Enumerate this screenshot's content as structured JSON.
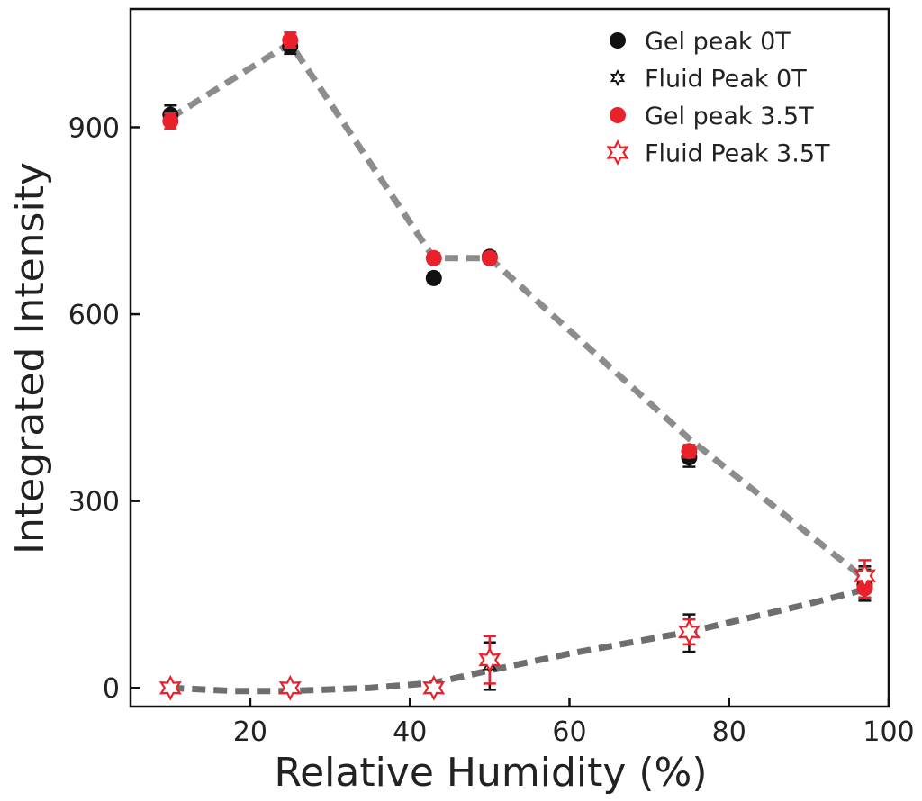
{
  "chart_data": {
    "type": "scatter",
    "xlabel": "Relative Humidity (%)",
    "ylabel": "Integrated Intensity",
    "xlim": [
      5,
      100
    ],
    "ylim": [
      -30,
      1090
    ],
    "xticks": [
      20,
      40,
      60,
      80,
      100
    ],
    "yticks": [
      0,
      300,
      600,
      900
    ],
    "grid": false,
    "legend_position": "top-right",
    "series": [
      {
        "name": "Gel peak 0T",
        "marker": "circle",
        "color": "#111111",
        "points": [
          {
            "x": 10,
            "y": 920,
            "err": 15
          },
          {
            "x": 25,
            "y": 1030,
            "err": 12
          },
          {
            "x": 43,
            "y": 658,
            "err": 8
          },
          {
            "x": 50,
            "y": 692,
            "err": 8
          },
          {
            "x": 75,
            "y": 370,
            "err": 15
          },
          {
            "x": 97,
            "y": 165,
            "err": 25
          }
        ]
      },
      {
        "name": "Fluid Peak 0T",
        "marker": "star-open",
        "color": "#111111",
        "points": [
          {
            "x": 10,
            "y": 0,
            "err": 5
          },
          {
            "x": 25,
            "y": 0,
            "err": 5
          },
          {
            "x": 43,
            "y": 0,
            "err": 5
          },
          {
            "x": 50,
            "y": 35,
            "err": 38
          },
          {
            "x": 75,
            "y": 88,
            "err": 30
          },
          {
            "x": 97,
            "y": 170,
            "err": 25
          }
        ]
      },
      {
        "name": "Gel peak 3.5T",
        "marker": "circle",
        "color": "#e8212a",
        "points": [
          {
            "x": 10,
            "y": 910,
            "err": 12
          },
          {
            "x": 25,
            "y": 1040,
            "err": 12
          },
          {
            "x": 43,
            "y": 690,
            "err": 8
          },
          {
            "x": 50,
            "y": 690,
            "err": 8
          },
          {
            "x": 75,
            "y": 380,
            "err": 10
          },
          {
            "x": 97,
            "y": 160,
            "err": 15
          }
        ]
      },
      {
        "name": "Fluid Peak 3.5T",
        "marker": "star-open",
        "color": "#e8212a",
        "points": [
          {
            "x": 10,
            "y": 0,
            "err": 5
          },
          {
            "x": 25,
            "y": 0,
            "err": 5
          },
          {
            "x": 43,
            "y": 0,
            "err": 5
          },
          {
            "x": 50,
            "y": 45,
            "err": 38
          },
          {
            "x": 75,
            "y": 90,
            "err": 20
          },
          {
            "x": 97,
            "y": 180,
            "err": 25
          }
        ]
      }
    ],
    "trend_lines": [
      {
        "style": "dashed",
        "color": "#8c8c8c",
        "points": [
          [
            10,
            915
          ],
          [
            25,
            1035
          ],
          [
            43,
            690
          ],
          [
            50,
            690
          ],
          [
            75,
            400
          ],
          [
            97,
            175
          ]
        ]
      },
      {
        "style": "dashed",
        "color": "#6e6e6e",
        "points": [
          [
            10,
            0
          ],
          [
            18,
            -5
          ],
          [
            25,
            -5
          ],
          [
            35,
            0
          ],
          [
            43,
            8
          ],
          [
            50,
            28
          ],
          [
            60,
            55
          ],
          [
            75,
            90
          ],
          [
            90,
            135
          ],
          [
            97,
            158
          ]
        ]
      }
    ]
  }
}
